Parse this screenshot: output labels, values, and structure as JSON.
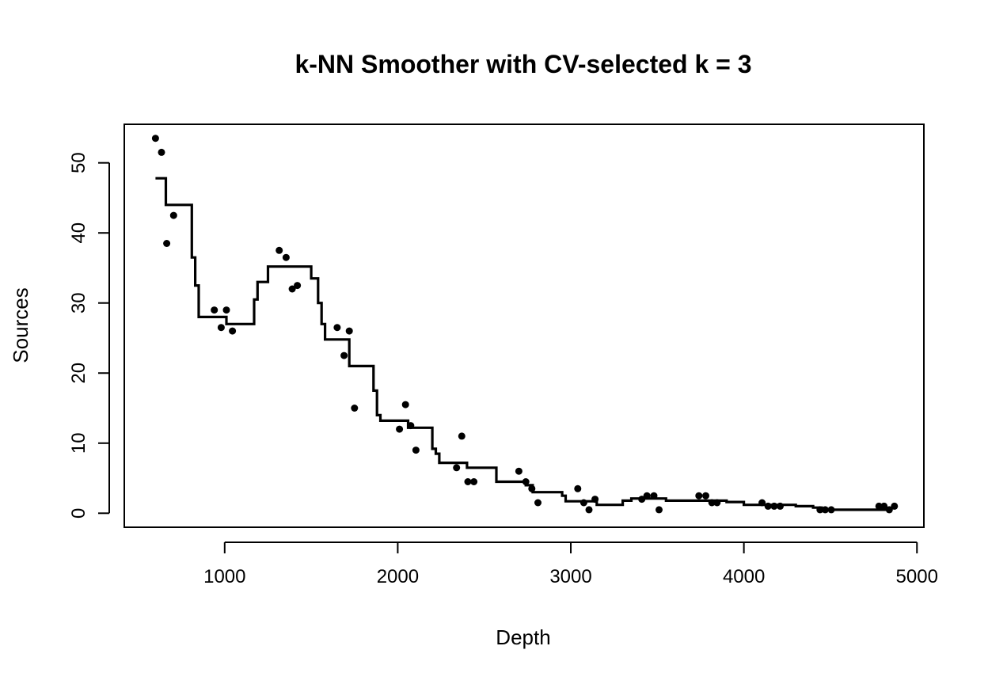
{
  "chart_data": {
    "type": "scatter",
    "title": "k-NN Smoother with CV-selected k = 3",
    "xlabel": "Depth",
    "ylabel": "Sources",
    "xlim": [
      420,
      5040
    ],
    "ylim": [
      -2,
      55.5
    ],
    "x_ticks": [
      1000,
      2000,
      3000,
      4000,
      5000
    ],
    "y_ticks": [
      0,
      10,
      20,
      30,
      40,
      50
    ],
    "grid": false,
    "legend": "none",
    "colors": {
      "points": "#000000",
      "line": "#000000"
    },
    "series": [
      {
        "kind": "points",
        "x": [
          600,
          635,
          665,
          705,
          940,
          980,
          1010,
          1045,
          1315,
          1355,
          1390,
          1420,
          1650,
          1690,
          1720,
          1750,
          2010,
          2045,
          2075,
          2105,
          2340,
          2370,
          2405,
          2440,
          2700,
          2740,
          2775,
          2810,
          3040,
          3075,
          3105,
          3140,
          3410,
          3440,
          3480,
          3510,
          3740,
          3780,
          3815,
          3845,
          4105,
          4140,
          4175,
          4210,
          4440,
          4470,
          4505,
          4780,
          4810,
          4840,
          4870
        ],
        "y": [
          53.5,
          51.5,
          38.5,
          42.5,
          29,
          26.5,
          29,
          26,
          37.5,
          36.5,
          32,
          32.5,
          26.5,
          22.5,
          26,
          15,
          12,
          15.5,
          12.5,
          9,
          6.5,
          11,
          4.5,
          4.5,
          6,
          4.5,
          3.5,
          1.5,
          3.5,
          1.5,
          0.5,
          2,
          2,
          2.5,
          2.5,
          0.5,
          2.5,
          2.5,
          1.5,
          1.5,
          1.5,
          1,
          1,
          1,
          0.5,
          0.5,
          0.5,
          1,
          1,
          0.5,
          1
        ]
      },
      {
        "kind": "step-line",
        "x": [
          600,
          660,
          810,
          830,
          850,
          870,
          960,
          1010,
          1150,
          1170,
          1190,
          1210,
          1250,
          1350,
          1500,
          1520,
          1540,
          1560,
          1580,
          1700,
          1720,
          1840,
          1860,
          1880,
          1900,
          1920,
          2010,
          2060,
          2180,
          2200,
          2220,
          2240,
          2300,
          2400,
          2550,
          2570,
          2700,
          2740,
          2780,
          2850,
          2950,
          2970,
          3100,
          3150,
          3250,
          3300,
          3350,
          3550,
          3700,
          3900,
          4000,
          4100,
          4300,
          4400,
          4450,
          4600,
          4700,
          4850
        ],
        "y": [
          47.8,
          44,
          36.5,
          32.5,
          28,
          28,
          28,
          27,
          27,
          30.5,
          33,
          33,
          35.2,
          35.2,
          33.5,
          33.5,
          30,
          27,
          24.8,
          24.8,
          21,
          21,
          17.5,
          14,
          13.2,
          13.2,
          13.2,
          12.2,
          12.2,
          9.2,
          8.5,
          7.2,
          7.2,
          6.5,
          6.5,
          4.5,
          4.5,
          4,
          3,
          3,
          2.5,
          1.7,
          1.7,
          1.2,
          1.2,
          1.8,
          2.1,
          1.8,
          1.8,
          1.6,
          1.2,
          1.2,
          1,
          0.8,
          0.5,
          0.5,
          0.5,
          0.5
        ]
      }
    ]
  }
}
